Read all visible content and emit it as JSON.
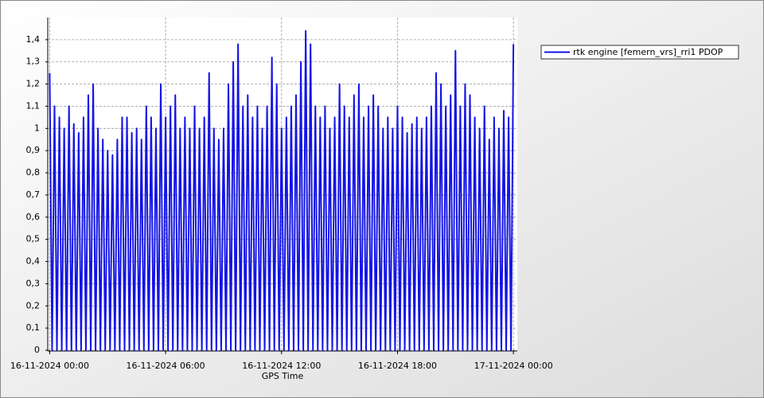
{
  "chart_data": {
    "type": "line",
    "x_label": "GPS Time",
    "x": [
      0,
      0.125,
      0.25,
      0.375,
      0.5,
      0.625,
      0.75,
      0.875,
      1,
      1.125,
      1.25,
      1.375,
      1.5,
      1.625,
      1.75,
      1.875,
      2,
      2.125,
      2.25,
      2.375,
      2.5,
      2.625,
      2.75,
      2.875,
      3,
      3.125,
      3.25,
      3.375,
      3.5,
      3.625,
      3.75,
      3.875,
      4,
      4.125,
      4.25,
      4.375,
      4.5,
      4.625,
      4.75,
      4.875,
      5,
      5.125,
      5.25,
      5.375,
      5.5,
      5.625,
      5.75,
      5.875,
      6,
      6.125,
      6.25,
      6.375,
      6.5,
      6.625,
      6.75,
      6.875,
      7,
      7.125,
      7.25,
      7.375,
      7.5,
      7.625,
      7.75,
      7.875,
      8,
      8.125,
      8.25,
      8.375,
      8.5,
      8.625,
      8.75,
      8.875,
      9,
      9.125,
      9.25,
      9.375,
      9.5,
      9.625,
      9.75,
      9.875,
      10,
      10.125,
      10.25,
      10.375,
      10.5,
      10.625,
      10.75,
      10.875,
      11,
      11.125,
      11.25,
      11.375,
      11.5,
      11.625,
      11.75,
      11.875,
      12,
      12.125,
      12.25,
      12.375,
      12.5,
      12.625,
      12.75,
      12.875,
      13,
      13.125,
      13.25,
      13.375,
      13.5,
      13.625,
      13.75,
      13.875,
      14,
      14.125,
      14.25,
      14.375,
      14.5,
      14.625,
      14.75,
      14.875,
      15,
      15.125,
      15.25,
      15.375,
      15.5,
      15.625,
      15.75,
      15.875,
      16,
      16.125,
      16.25,
      16.375,
      16.5,
      16.625,
      16.75,
      16.875,
      17,
      17.125,
      17.25,
      17.375,
      17.5,
      17.625,
      17.75,
      17.875,
      18,
      18.125,
      18.25,
      18.375,
      18.5,
      18.625,
      18.75,
      18.875,
      19,
      19.125,
      19.25,
      19.375,
      19.5,
      19.625,
      19.75,
      19.875,
      20,
      20.125,
      20.25,
      20.375,
      20.5,
      20.625,
      20.75,
      20.875,
      21,
      21.125,
      21.25,
      21.375,
      21.5,
      21.625,
      21.75,
      21.875,
      22,
      22.125,
      22.25,
      22.375,
      22.5,
      22.625,
      22.75,
      22.875,
      23,
      23.125,
      23.25,
      23.375,
      23.5,
      23.625,
      23.75,
      23.875,
      24
    ],
    "series": [
      {
        "name": "rtk engine [femern_vrs]_rri1 PDOP",
        "color": "#1414e6",
        "values": [
          1.25,
          0,
          1.1,
          0,
          1.05,
          0,
          1.0,
          0,
          1.1,
          0,
          1.02,
          0,
          0.98,
          0,
          1.05,
          0,
          1.15,
          0,
          1.2,
          0,
          1.0,
          0,
          0.95,
          0,
          0.9,
          0,
          0.88,
          0,
          0.95,
          0,
          1.05,
          0,
          1.05,
          0,
          0.98,
          0,
          1.0,
          0,
          0.95,
          0,
          1.1,
          0,
          1.05,
          0,
          1.0,
          0,
          1.2,
          0,
          1.05,
          0,
          1.1,
          0,
          1.15,
          0,
          1.0,
          0,
          1.05,
          0,
          1.0,
          0,
          1.1,
          0,
          1.0,
          0,
          1.05,
          0,
          1.25,
          0,
          1.0,
          0,
          0.95,
          0,
          1.0,
          0,
          1.2,
          0,
          1.3,
          0,
          1.38,
          0,
          1.1,
          0,
          1.15,
          0,
          1.05,
          0,
          1.1,
          0,
          1.0,
          0,
          1.1,
          0,
          1.32,
          0,
          1.2,
          0,
          1.0,
          0,
          1.05,
          0,
          1.1,
          0,
          1.15,
          0,
          1.3,
          0,
          1.44,
          0,
          1.38,
          0,
          1.1,
          0,
          1.05,
          0,
          1.1,
          0,
          1.0,
          0,
          1.05,
          0,
          1.2,
          0,
          1.1,
          0,
          1.05,
          0,
          1.15,
          0,
          1.2,
          0,
          1.05,
          0,
          1.1,
          0,
          1.15,
          0,
          1.1,
          0,
          1.0,
          0,
          1.05,
          0,
          1.0,
          0,
          1.1,
          0,
          1.05,
          0,
          0.98,
          0,
          1.02,
          0,
          1.05,
          0,
          1.0,
          0,
          1.05,
          0,
          1.1,
          0,
          1.25,
          0,
          1.2,
          0,
          1.1,
          0,
          1.15,
          0,
          1.35,
          0,
          1.1,
          0,
          1.2,
          0,
          1.15,
          0,
          1.05,
          0,
          1.0,
          0,
          1.1,
          0,
          0.95,
          0,
          1.05,
          0,
          1.0,
          0,
          1.08,
          0,
          1.05,
          0,
          1.38
        ]
      }
    ],
    "xlim": [
      -0.1,
      24.2
    ],
    "xticks": [
      {
        "value": 0,
        "label": "16-11-2024 00:00"
      },
      {
        "value": 6,
        "label": "16-11-2024 06:00"
      },
      {
        "value": 12,
        "label": "16-11-2024 12:00"
      },
      {
        "value": 18,
        "label": "16-11-2024 18:00"
      },
      {
        "value": 24,
        "label": "17-11-2024 00:00"
      }
    ],
    "ylim": [
      0,
      1.5
    ],
    "yticks": [
      0,
      {
        "value": 0.1,
        "label": "0,1"
      },
      {
        "value": 0.2,
        "label": "0,2"
      },
      {
        "value": 0.3,
        "label": "0,3"
      },
      {
        "value": 0.4,
        "label": "0,4"
      },
      {
        "value": 0.5,
        "label": "0,5"
      },
      {
        "value": 0.6,
        "label": "0,6"
      },
      {
        "value": 0.7,
        "label": "0,7"
      },
      {
        "value": 0.8,
        "label": "0,8"
      },
      {
        "value": 0.9,
        "label": "0,9"
      },
      1,
      {
        "value": 1.1,
        "label": "1,1"
      },
      {
        "value": 1.2,
        "label": "1,2"
      },
      {
        "value": 1.3,
        "label": "1,3"
      },
      {
        "value": 1.4,
        "label": "1,4"
      }
    ],
    "grid": true,
    "legend": "top-right"
  }
}
